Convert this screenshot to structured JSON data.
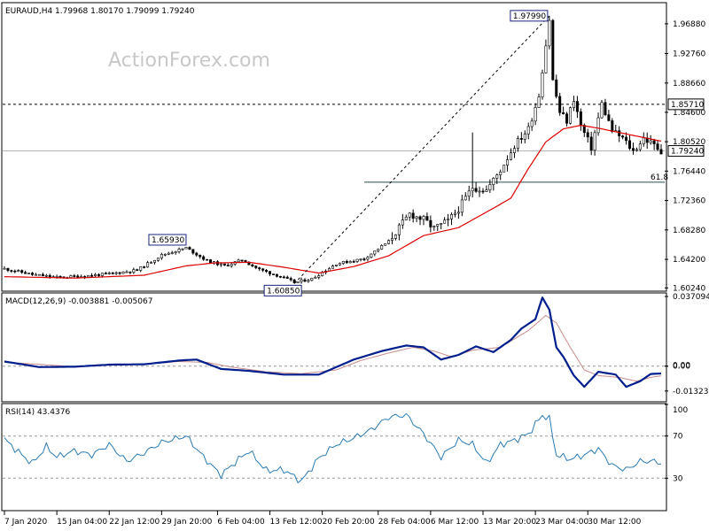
{
  "chart_data": [
    {
      "type": "candlestick",
      "header": "EURAUD,H4  1.79968 1.80170 1.79099 1.79240",
      "watermark": "ActionForex.com",
      "ylim": [
        1.5991,
        1.9969
      ],
      "y_ticks": [
        "1.96880",
        "1.92760",
        "1.88660",
        "1.84600",
        "1.80520",
        "1.76440",
        "1.72360",
        "1.68280",
        "1.64200",
        "1.60240"
      ],
      "current_price": "1.79240",
      "levels": [
        {
          "value": 1.8571,
          "label": "1.85710",
          "style": "dashed",
          "color": "#000000"
        },
        {
          "value": 1.7924,
          "label": "1.79240",
          "style": "solid",
          "color": "#b4b4b4"
        }
      ],
      "fib_label": "61.8",
      "fib_level": 1.7491,
      "annotations": [
        {
          "label": "1.97990",
          "index": 156,
          "price": 1.9799
        },
        {
          "label": "1.65930",
          "index": 52,
          "price": 1.6593
        },
        {
          "label": "1.60850",
          "index": 83,
          "price": 1.6085
        }
      ],
      "trend_line": {
        "from": {
          "index": 83,
          "price": 1.6085
        },
        "to": {
          "index": 156,
          "price": 1.9799
        }
      },
      "ma_color": "#dd0000",
      "candle_color": "#000000",
      "price_path": [
        [
          0,
          1.629
        ],
        [
          8,
          1.621
        ],
        [
          15,
          1.617
        ],
        [
          23,
          1.619
        ],
        [
          30,
          1.622
        ],
        [
          38,
          1.627
        ],
        [
          45,
          1.648
        ],
        [
          52,
          1.658
        ],
        [
          58,
          1.64
        ],
        [
          63,
          1.633
        ],
        [
          68,
          1.641
        ],
        [
          73,
          1.628
        ],
        [
          78,
          1.62
        ],
        [
          83,
          1.61
        ],
        [
          88,
          1.615
        ],
        [
          95,
          1.636
        ],
        [
          103,
          1.643
        ],
        [
          110,
          1.667
        ],
        [
          116,
          1.705
        ],
        [
          120,
          1.697
        ],
        [
          123,
          1.685
        ],
        [
          127,
          1.695
        ],
        [
          130,
          1.712
        ],
        [
          134,
          1.742
        ],
        [
          138,
          1.738
        ],
        [
          142,
          1.766
        ],
        [
          146,
          1.8
        ],
        [
          150,
          1.823
        ],
        [
          153,
          1.87
        ],
        [
          155,
          1.94
        ],
        [
          156,
          1.975
        ],
        [
          157,
          1.89
        ],
        [
          159,
          1.846
        ],
        [
          161,
          1.834
        ],
        [
          163,
          1.865
        ],
        [
          165,
          1.827
        ],
        [
          168,
          1.797
        ],
        [
          171,
          1.858
        ],
        [
          174,
          1.82
        ],
        [
          177,
          1.81
        ],
        [
          180,
          1.792
        ],
        [
          183,
          1.81
        ],
        [
          186,
          1.8
        ],
        [
          188,
          1.7924
        ]
      ],
      "ma_path": [
        [
          0,
          1.618
        ],
        [
          20,
          1.616
        ],
        [
          40,
          1.62
        ],
        [
          52,
          1.633
        ],
        [
          60,
          1.637
        ],
        [
          70,
          1.638
        ],
        [
          80,
          1.631
        ],
        [
          90,
          1.623
        ],
        [
          100,
          1.632
        ],
        [
          110,
          1.647
        ],
        [
          120,
          1.675
        ],
        [
          130,
          1.686
        ],
        [
          140,
          1.713
        ],
        [
          145,
          1.727
        ],
        [
          150,
          1.768
        ],
        [
          155,
          1.805
        ],
        [
          160,
          1.823
        ],
        [
          165,
          1.828
        ],
        [
          170,
          1.824
        ],
        [
          180,
          1.814
        ],
        [
          188,
          1.806
        ]
      ]
    },
    {
      "type": "line",
      "header": "MACD(12,26,9) -0.003881 -0.005067",
      "ylim": [
        -0.0185,
        0.0385
      ],
      "y_ticks": [
        "0.037094",
        "0.00",
        "0.00",
        "-0.013231"
      ],
      "series": [
        {
          "name": "MACD",
          "color": "#001f8c",
          "values": [
            [
              0,
              0.0025
            ],
            [
              5,
              0.001
            ],
            [
              10,
              -0.0005
            ],
            [
              20,
              -0.0003
            ],
            [
              30,
              0.0008
            ],
            [
              40,
              0.001
            ],
            [
              50,
              0.003
            ],
            [
              55,
              0.0035
            ],
            [
              62,
              -0.0015
            ],
            [
              70,
              -0.0025
            ],
            [
              80,
              -0.0045
            ],
            [
              90,
              -0.0045
            ],
            [
              95,
              -0.0005
            ],
            [
              100,
              0.0035
            ],
            [
              108,
              0.008
            ],
            [
              115,
              0.011
            ],
            [
              120,
              0.01
            ],
            [
              125,
              0.0035
            ],
            [
              130,
              0.006
            ],
            [
              135,
              0.0105
            ],
            [
              140,
              0.0075
            ],
            [
              145,
              0.014
            ],
            [
              148,
              0.02
            ],
            [
              152,
              0.025
            ],
            [
              154,
              0.0365
            ],
            [
              156,
              0.03
            ],
            [
              158,
              0.01
            ],
            [
              160,
              0.005
            ],
            [
              163,
              -0.005
            ],
            [
              166,
              -0.011
            ],
            [
              170,
              -0.003
            ],
            [
              175,
              -0.0045
            ],
            [
              178,
              -0.011
            ],
            [
              182,
              -0.008
            ],
            [
              185,
              -0.0042
            ],
            [
              188,
              -0.0039
            ]
          ]
        },
        {
          "name": "Signal",
          "color": "#c88c8c",
          "values": [
            [
              0,
              0.002
            ],
            [
              10,
              0.001
            ],
            [
              20,
              -0.0003
            ],
            [
              30,
              0.0007
            ],
            [
              40,
              0.0009
            ],
            [
              50,
              0.0025
            ],
            [
              58,
              0.002
            ],
            [
              65,
              -0.0005
            ],
            [
              75,
              -0.003
            ],
            [
              85,
              -0.004
            ],
            [
              95,
              -0.002
            ],
            [
              102,
              0.003
            ],
            [
              110,
              0.007
            ],
            [
              117,
              0.01
            ],
            [
              123,
              0.008
            ],
            [
              128,
              0.005
            ],
            [
              134,
              0.0085
            ],
            [
              142,
              0.01
            ],
            [
              150,
              0.019
            ],
            [
              155,
              0.027
            ],
            [
              158,
              0.023
            ],
            [
              162,
              0.01
            ],
            [
              166,
              -0.002
            ],
            [
              170,
              -0.005
            ],
            [
              176,
              -0.006
            ],
            [
              181,
              -0.008
            ],
            [
              185,
              -0.006
            ],
            [
              188,
              -0.0051
            ]
          ]
        }
      ]
    },
    {
      "type": "line",
      "header": "RSI(14) 43.4376",
      "ylim": [
        0,
        100
      ],
      "y_ticks": [
        "100",
        "70",
        "30"
      ],
      "levels": [
        70,
        30
      ],
      "series": [
        {
          "name": "RSI(14)",
          "color": "#2a7bb3",
          "values": [
            [
              0,
              67
            ],
            [
              5,
              52
            ],
            [
              8,
              44
            ],
            [
              12,
              60
            ],
            [
              15,
              50
            ],
            [
              20,
              56
            ],
            [
              25,
              52
            ],
            [
              30,
              62
            ],
            [
              35,
              46
            ],
            [
              40,
              54
            ],
            [
              45,
              64
            ],
            [
              52,
              70
            ],
            [
              57,
              50
            ],
            [
              62,
              33
            ],
            [
              66,
              45
            ],
            [
              70,
              56
            ],
            [
              75,
              37
            ],
            [
              80,
              38
            ],
            [
              85,
              27
            ],
            [
              90,
              49
            ],
            [
              95,
              62
            ],
            [
              100,
              68
            ],
            [
              105,
              76
            ],
            [
              110,
              88
            ],
            [
              115,
              90
            ],
            [
              120,
              72
            ],
            [
              125,
              50
            ],
            [
              130,
              66
            ],
            [
              134,
              62
            ],
            [
              138,
              44
            ],
            [
              142,
              62
            ],
            [
              146,
              66
            ],
            [
              150,
              72
            ],
            [
              154,
              90
            ],
            [
              156,
              86
            ],
            [
              158,
              52
            ],
            [
              162,
              48
            ],
            [
              166,
              52
            ],
            [
              170,
              58
            ],
            [
              174,
              42
            ],
            [
              178,
              38
            ],
            [
              182,
              46
            ],
            [
              186,
              46
            ],
            [
              188,
              43.4
            ]
          ]
        }
      ]
    }
  ],
  "x_axis": {
    "labels": [
      "7 Jan 2020",
      "15 Jan 04:00",
      "22 Jan 12:00",
      "29 Jan 20:00",
      "6 Feb 04:00",
      "13 Feb 12:00",
      "20 Feb 20:00",
      "28 Feb 04:00",
      "6 Mar 12:00",
      "13 Mar 20:00",
      "23 Mar 04:00",
      "30 Mar 12:00"
    ],
    "label_index": [
      0,
      15,
      30,
      45,
      61,
      76,
      91,
      107,
      122,
      137,
      152,
      167
    ]
  }
}
